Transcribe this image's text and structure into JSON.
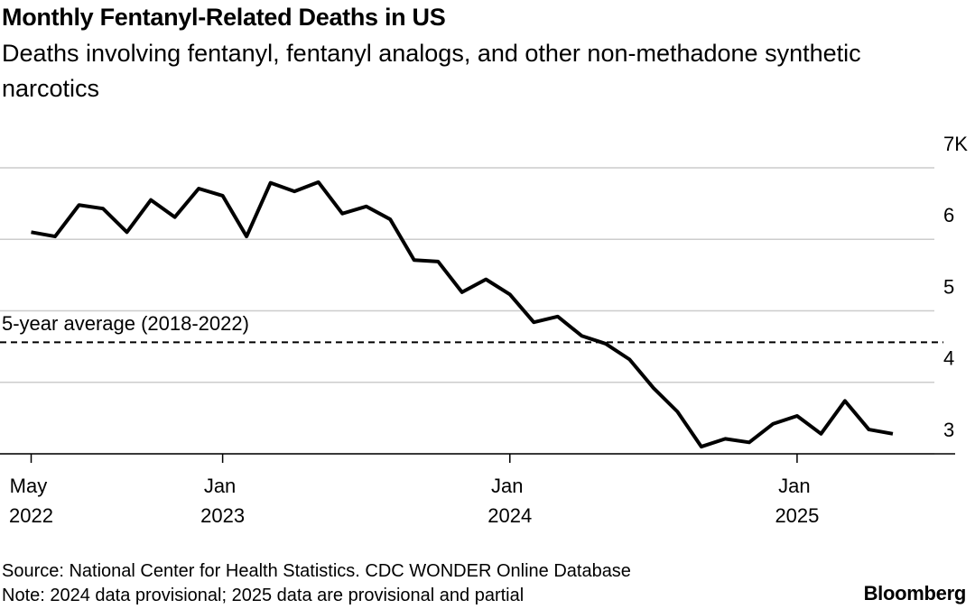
{
  "chart_data": {
    "type": "line",
    "title": "Monthly Fentanyl-Related Deaths in US",
    "subtitle": "Deaths involving fentanyl, fentanyl analogs, and other non-methadone synthetic narcotics",
    "source": "Source: National Center for Health Statistics. CDC WONDER Online Database",
    "note": "Note: 2024 data provisional; 2025 data are provisional and partial",
    "brand": "Bloomberg",
    "x": [
      "2022-05",
      "2022-06",
      "2022-07",
      "2022-08",
      "2022-09",
      "2022-10",
      "2022-11",
      "2022-12",
      "2023-01",
      "2023-02",
      "2023-03",
      "2023-04",
      "2023-05",
      "2023-06",
      "2023-07",
      "2023-08",
      "2023-09",
      "2023-10",
      "2023-11",
      "2023-12",
      "2024-01",
      "2024-02",
      "2024-03",
      "2024-04",
      "2024-05",
      "2024-06",
      "2024-07",
      "2024-08",
      "2024-09",
      "2024-10",
      "2024-11",
      "2024-12",
      "2025-01",
      "2025-02",
      "2025-03",
      "2025-04",
      "2025-05"
    ],
    "series": [
      {
        "name": "Deaths",
        "color": "#000000",
        "values": [
          6.1,
          6.04,
          6.48,
          6.43,
          6.1,
          6.55,
          6.31,
          6.71,
          6.61,
          6.04,
          6.79,
          6.67,
          6.8,
          6.36,
          6.46,
          6.28,
          5.71,
          5.69,
          5.26,
          5.44,
          5.23,
          4.84,
          4.92,
          4.65,
          4.54,
          4.32,
          3.92,
          3.59,
          3.1,
          3.21,
          3.16,
          3.42,
          3.53,
          3.28,
          3.74,
          3.34,
          3.28
        ]
      }
    ],
    "reference_line": {
      "value": 4.56,
      "label": "5-year average (2018-2022)",
      "color": "#000000"
    },
    "xlim": [
      "2022-04",
      "2025-07"
    ],
    "xticks": [
      {
        "value": "2022-05",
        "label": "May 2022"
      },
      {
        "value": "2023-01",
        "label": "Jan 2023"
      },
      {
        "value": "2024-01",
        "label": "Jan 2024"
      },
      {
        "value": "2025-01",
        "label": "Jan 2025"
      }
    ],
    "ylim": [
      3,
      7
    ],
    "yticks": [
      3,
      4,
      5,
      6,
      {
        "value": 7,
        "label": "7K"
      }
    ],
    "grid": true
  }
}
